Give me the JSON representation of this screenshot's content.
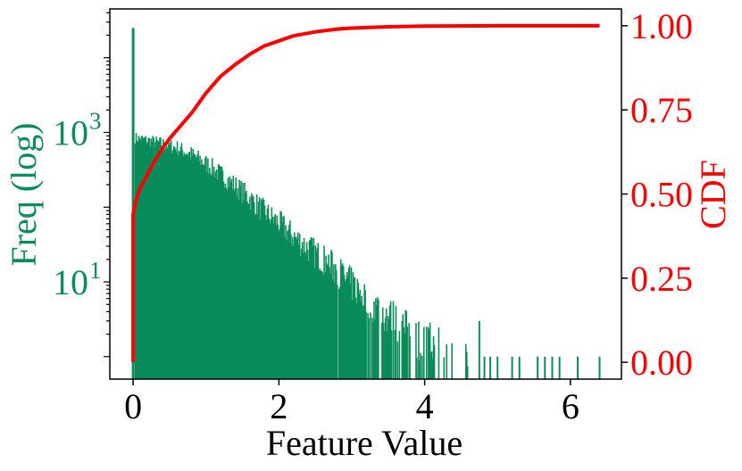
{
  "colors": {
    "histogram": "#0b8c5a",
    "cdf": "#ff0000",
    "axis": "#000000",
    "background": "#ffffff"
  },
  "chart_data": {
    "type": "bar",
    "subtype": "histogram with CDF overlay (dual y-axis)",
    "title": "",
    "xlabel": "Feature Value",
    "ylabel_left": "Freq (log)",
    "ylabel_right": "CDF",
    "xlim": [
      -0.32,
      6.7
    ],
    "ylim_left": [
      0.5,
      45000
    ],
    "ylim_right": [
      -0.05,
      1.05
    ],
    "yscale_left": "log",
    "grid": false,
    "legend": "none",
    "x_ticks": [
      {
        "value": 0,
        "label": "0"
      },
      {
        "value": 2,
        "label": "2"
      },
      {
        "value": 4,
        "label": "4"
      },
      {
        "value": 6,
        "label": "6"
      }
    ],
    "y_left_ticks": [
      {
        "value": 10,
        "base": "10",
        "exp": "1"
      },
      {
        "value": 1000,
        "base": "10",
        "exp": "3"
      }
    ],
    "y_right_ticks": [
      {
        "value": 0.0,
        "label": "0.00"
      },
      {
        "value": 0.25,
        "label": "0.25"
      },
      {
        "value": 0.5,
        "label": "0.50"
      },
      {
        "value": 0.75,
        "label": "0.75"
      },
      {
        "value": 1.0,
        "label": "1.00"
      }
    ],
    "histogram": {
      "name": "",
      "spike": {
        "x": 0.0,
        "count": 25000
      },
      "bins": [
        {
          "x": 0.02,
          "count": 850
        },
        {
          "x": 0.2,
          "count": 780
        },
        {
          "x": 0.4,
          "count": 700
        },
        {
          "x": 0.6,
          "count": 620
        },
        {
          "x": 0.8,
          "count": 500
        },
        {
          "x": 1.0,
          "count": 380
        },
        {
          "x": 1.2,
          "count": 270
        },
        {
          "x": 1.4,
          "count": 190
        },
        {
          "x": 1.6,
          "count": 130
        },
        {
          "x": 1.8,
          "count": 85
        },
        {
          "x": 2.0,
          "count": 60
        },
        {
          "x": 2.2,
          "count": 40
        },
        {
          "x": 2.4,
          "count": 28
        },
        {
          "x": 2.6,
          "count": 20
        },
        {
          "x": 2.8,
          "count": 14
        },
        {
          "x": 3.0,
          "count": 9
        },
        {
          "x": 3.2,
          "count": 6
        },
        {
          "x": 3.4,
          "count": 4
        },
        {
          "x": 3.6,
          "count": 3
        },
        {
          "x": 3.8,
          "count": 2
        },
        {
          "x": 4.0,
          "count": 1.5
        },
        {
          "x": 4.2,
          "count": 1.5
        },
        {
          "x": 4.4,
          "count": 1.2
        },
        {
          "x": 4.6,
          "count": 1.0
        }
      ],
      "outliers": [
        {
          "x": 4.75,
          "count": 3
        },
        {
          "x": 4.82,
          "count": 1
        },
        {
          "x": 4.9,
          "count": 1
        },
        {
          "x": 5.0,
          "count": 1
        },
        {
          "x": 5.2,
          "count": 1
        },
        {
          "x": 5.3,
          "count": 1
        },
        {
          "x": 5.55,
          "count": 1
        },
        {
          "x": 5.65,
          "count": 1
        },
        {
          "x": 5.75,
          "count": 1
        },
        {
          "x": 5.85,
          "count": 1
        },
        {
          "x": 6.1,
          "count": 1
        },
        {
          "x": 6.4,
          "count": 1
        }
      ]
    },
    "cdf": {
      "name": "",
      "x": [
        0.0,
        0.0,
        0.05,
        0.1,
        0.2,
        0.3,
        0.4,
        0.5,
        0.6,
        0.8,
        1.0,
        1.2,
        1.4,
        1.6,
        1.8,
        2.0,
        2.2,
        2.5,
        2.8,
        3.0,
        3.5,
        4.0,
        5.0,
        6.4
      ],
      "y": [
        0.0,
        0.44,
        0.49,
        0.52,
        0.56,
        0.6,
        0.635,
        0.665,
        0.69,
        0.74,
        0.8,
        0.85,
        0.885,
        0.915,
        0.94,
        0.955,
        0.97,
        0.982,
        0.99,
        0.993,
        0.997,
        0.999,
        1.0,
        1.0
      ]
    }
  }
}
